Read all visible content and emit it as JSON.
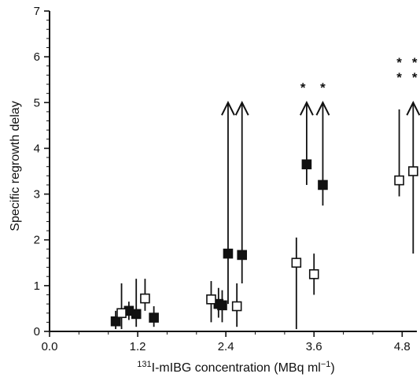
{
  "chart_data": {
    "type": "scatter",
    "title": "",
    "xlabel": "I-mIBG concentration (MBq ml",
    "xlabel_prefix": "131",
    "xlabel_suffix": "−1",
    "xlabel_close": ")",
    "ylabel": "Specific regrowth delay",
    "xlim": [
      0,
      5.0
    ],
    "ylim": [
      0,
      7
    ],
    "x_ticks": [
      "0.0",
      "1.2",
      "2.4",
      "3.6",
      "4.8"
    ],
    "x_tick_values": [
      0,
      1.2,
      2.4,
      3.6,
      4.8
    ],
    "y_ticks": [
      "0",
      "1",
      "2",
      "3",
      "4",
      "5",
      "6",
      "7"
    ],
    "y_tick_values": [
      0,
      1,
      2,
      3,
      4,
      5,
      6,
      7
    ],
    "legend": false,
    "grid": false,
    "series": [
      {
        "marker": "filled-square",
        "points": [
          {
            "x": 0.9,
            "y": 0.22,
            "lo": 0.05,
            "hi": 0.45
          },
          {
            "x": 1.08,
            "y": 0.45,
            "lo": 0.25,
            "hi": 0.65
          },
          {
            "x": 1.18,
            "y": 0.38,
            "lo": 0.1,
            "hi": 1.15
          },
          {
            "x": 1.42,
            "y": 0.3,
            "lo": 0.1,
            "hi": 0.55
          },
          {
            "x": 2.3,
            "y": 0.6,
            "lo": 0.3,
            "hi": 0.95
          },
          {
            "x": 2.35,
            "y": 0.57,
            "lo": 0.2,
            "hi": 0.9
          },
          {
            "x": 2.43,
            "y": 1.7,
            "lo": 0.6,
            "hi": 5.0,
            "arrow": true
          },
          {
            "x": 2.62,
            "y": 1.67,
            "lo": 1.05,
            "hi": 5.0,
            "arrow": true
          },
          {
            "x": 3.5,
            "y": 3.65,
            "lo": 3.2,
            "hi": 5.0,
            "arrow": true
          },
          {
            "x": 3.72,
            "y": 3.2,
            "lo": 2.75,
            "hi": 5.0,
            "arrow": true
          }
        ]
      },
      {
        "marker": "open-square",
        "points": [
          {
            "x": 0.98,
            "y": 0.4,
            "lo": 0.05,
            "hi": 1.05
          },
          {
            "x": 1.3,
            "y": 0.72,
            "lo": 0.45,
            "hi": 1.15
          },
          {
            "x": 2.2,
            "y": 0.7,
            "lo": 0.2,
            "hi": 1.1
          },
          {
            "x": 2.55,
            "y": 0.55,
            "lo": 0.1,
            "hi": 1.05
          },
          {
            "x": 3.36,
            "y": 1.5,
            "lo": 0.05,
            "hi": 2.05
          },
          {
            "x": 3.6,
            "y": 1.25,
            "lo": 0.8,
            "hi": 1.7
          },
          {
            "x": 4.76,
            "y": 3.3,
            "lo": 2.95,
            "hi": 4.85
          },
          {
            "x": 4.95,
            "y": 3.5,
            "lo": 1.7,
            "hi": 5.0,
            "arrow": true
          }
        ]
      }
    ],
    "annotations": [
      {
        "text": "*",
        "x": 3.45,
        "y": 5.4
      },
      {
        "text": "*",
        "x": 3.72,
        "y": 5.4
      },
      {
        "text": "*",
        "x": 4.76,
        "y": 5.95
      },
      {
        "text": "*",
        "x": 4.97,
        "y": 5.95
      },
      {
        "text": "*",
        "x": 4.76,
        "y": 5.62
      },
      {
        "text": "*",
        "x": 4.97,
        "y": 5.62
      }
    ]
  }
}
